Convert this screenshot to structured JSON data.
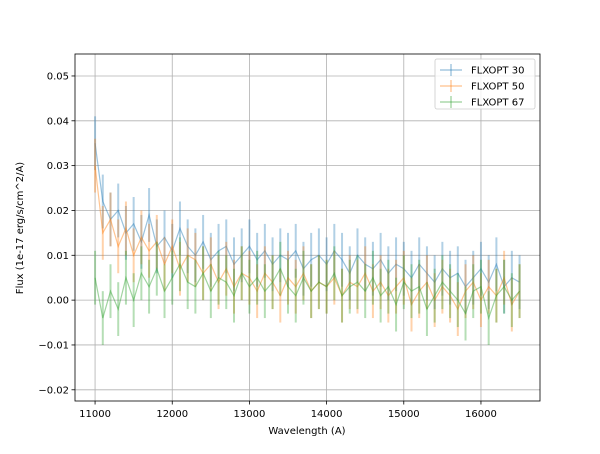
{
  "chart_data": {
    "type": "line",
    "title": "",
    "xlabel": "Wavelength (A)",
    "ylabel": "Flux (1e-17 erg/s/cm^2/A)",
    "xlim": [
      10740,
      16765
    ],
    "ylim": [
      -0.0225,
      0.0549
    ],
    "grid": true,
    "legend_position": "top-right",
    "xticks": [
      11000,
      12000,
      13000,
      14000,
      15000,
      16000
    ],
    "xtick_labels": [
      "11000",
      "12000",
      "13000",
      "14000",
      "15000",
      "16000"
    ],
    "yticks": [
      -0.02,
      -0.01,
      0.0,
      0.01,
      0.02,
      0.03,
      0.04,
      0.05
    ],
    "ytick_labels": [
      "−0.02",
      "−0.01",
      "0.00",
      "0.01",
      "0.02",
      "0.03",
      "0.04",
      "0.05"
    ],
    "x": {
      "start": 11000,
      "step": 100,
      "count": 56
    },
    "series": [
      {
        "name": "FLXOPT 30",
        "color": "#1f77b4",
        "yerr": 0.006,
        "values": [
          0.035,
          0.022,
          0.018,
          0.02,
          0.015,
          0.017,
          0.013,
          0.019,
          0.012,
          0.014,
          0.011,
          0.016,
          0.012,
          0.01,
          0.013,
          0.009,
          0.011,
          0.012,
          0.008,
          0.01,
          0.012,
          0.009,
          0.011,
          0.008,
          0.01,
          0.009,
          0.011,
          0.007,
          0.009,
          0.01,
          0.008,
          0.011,
          0.009,
          0.006,
          0.01,
          0.008,
          0.007,
          0.009,
          0.006,
          0.008,
          0.007,
          0.005,
          0.008,
          0.006,
          0.004,
          0.007,
          0.005,
          0.006,
          0.003,
          0.005,
          0.007,
          0.004,
          0.008,
          0.003,
          0.005,
          0.004
        ]
      },
      {
        "name": "FLXOPT 50",
        "color": "#ff7f0e",
        "yerr": 0.006,
        "values": [
          0.03,
          0.015,
          0.018,
          0.012,
          0.016,
          0.01,
          0.014,
          0.011,
          0.013,
          0.008,
          0.012,
          0.007,
          0.01,
          0.009,
          0.006,
          0.008,
          0.004,
          0.007,
          0.003,
          0.006,
          0.005,
          0.002,
          0.006,
          0.004,
          0.001,
          0.005,
          0.003,
          0.006,
          0.002,
          0.004,
          0.003,
          0.005,
          0.001,
          0.004,
          0.003,
          0.006,
          0.002,
          0.004,
          0.001,
          0.003,
          0.005,
          -0.001,
          0.002,
          0.004,
          0.0,
          0.003,
          0.001,
          -0.002,
          0.002,
          0.004,
          0.0,
          0.003,
          0.001,
          0.005,
          -0.001,
          0.002
        ]
      },
      {
        "name": "FLXOPT 67",
        "color": "#2ca02c",
        "yerr": 0.006,
        "values": [
          0.005,
          -0.004,
          0.002,
          -0.002,
          0.005,
          0.0,
          0.006,
          0.003,
          0.007,
          0.002,
          0.005,
          0.008,
          0.004,
          0.003,
          0.006,
          0.002,
          0.005,
          0.004,
          0.001,
          0.006,
          0.003,
          0.005,
          0.002,
          0.004,
          0.007,
          0.003,
          0.001,
          0.005,
          0.002,
          0.004,
          0.003,
          0.006,
          0.001,
          0.003,
          0.004,
          0.002,
          0.005,
          0.001,
          0.003,
          -0.001,
          0.004,
          0.002,
          0.003,
          -0.002,
          0.001,
          0.004,
          0.002,
          0.0,
          -0.003,
          0.002,
          0.003,
          -0.004,
          0.001,
          0.003,
          0.0,
          0.002
        ]
      }
    ]
  }
}
